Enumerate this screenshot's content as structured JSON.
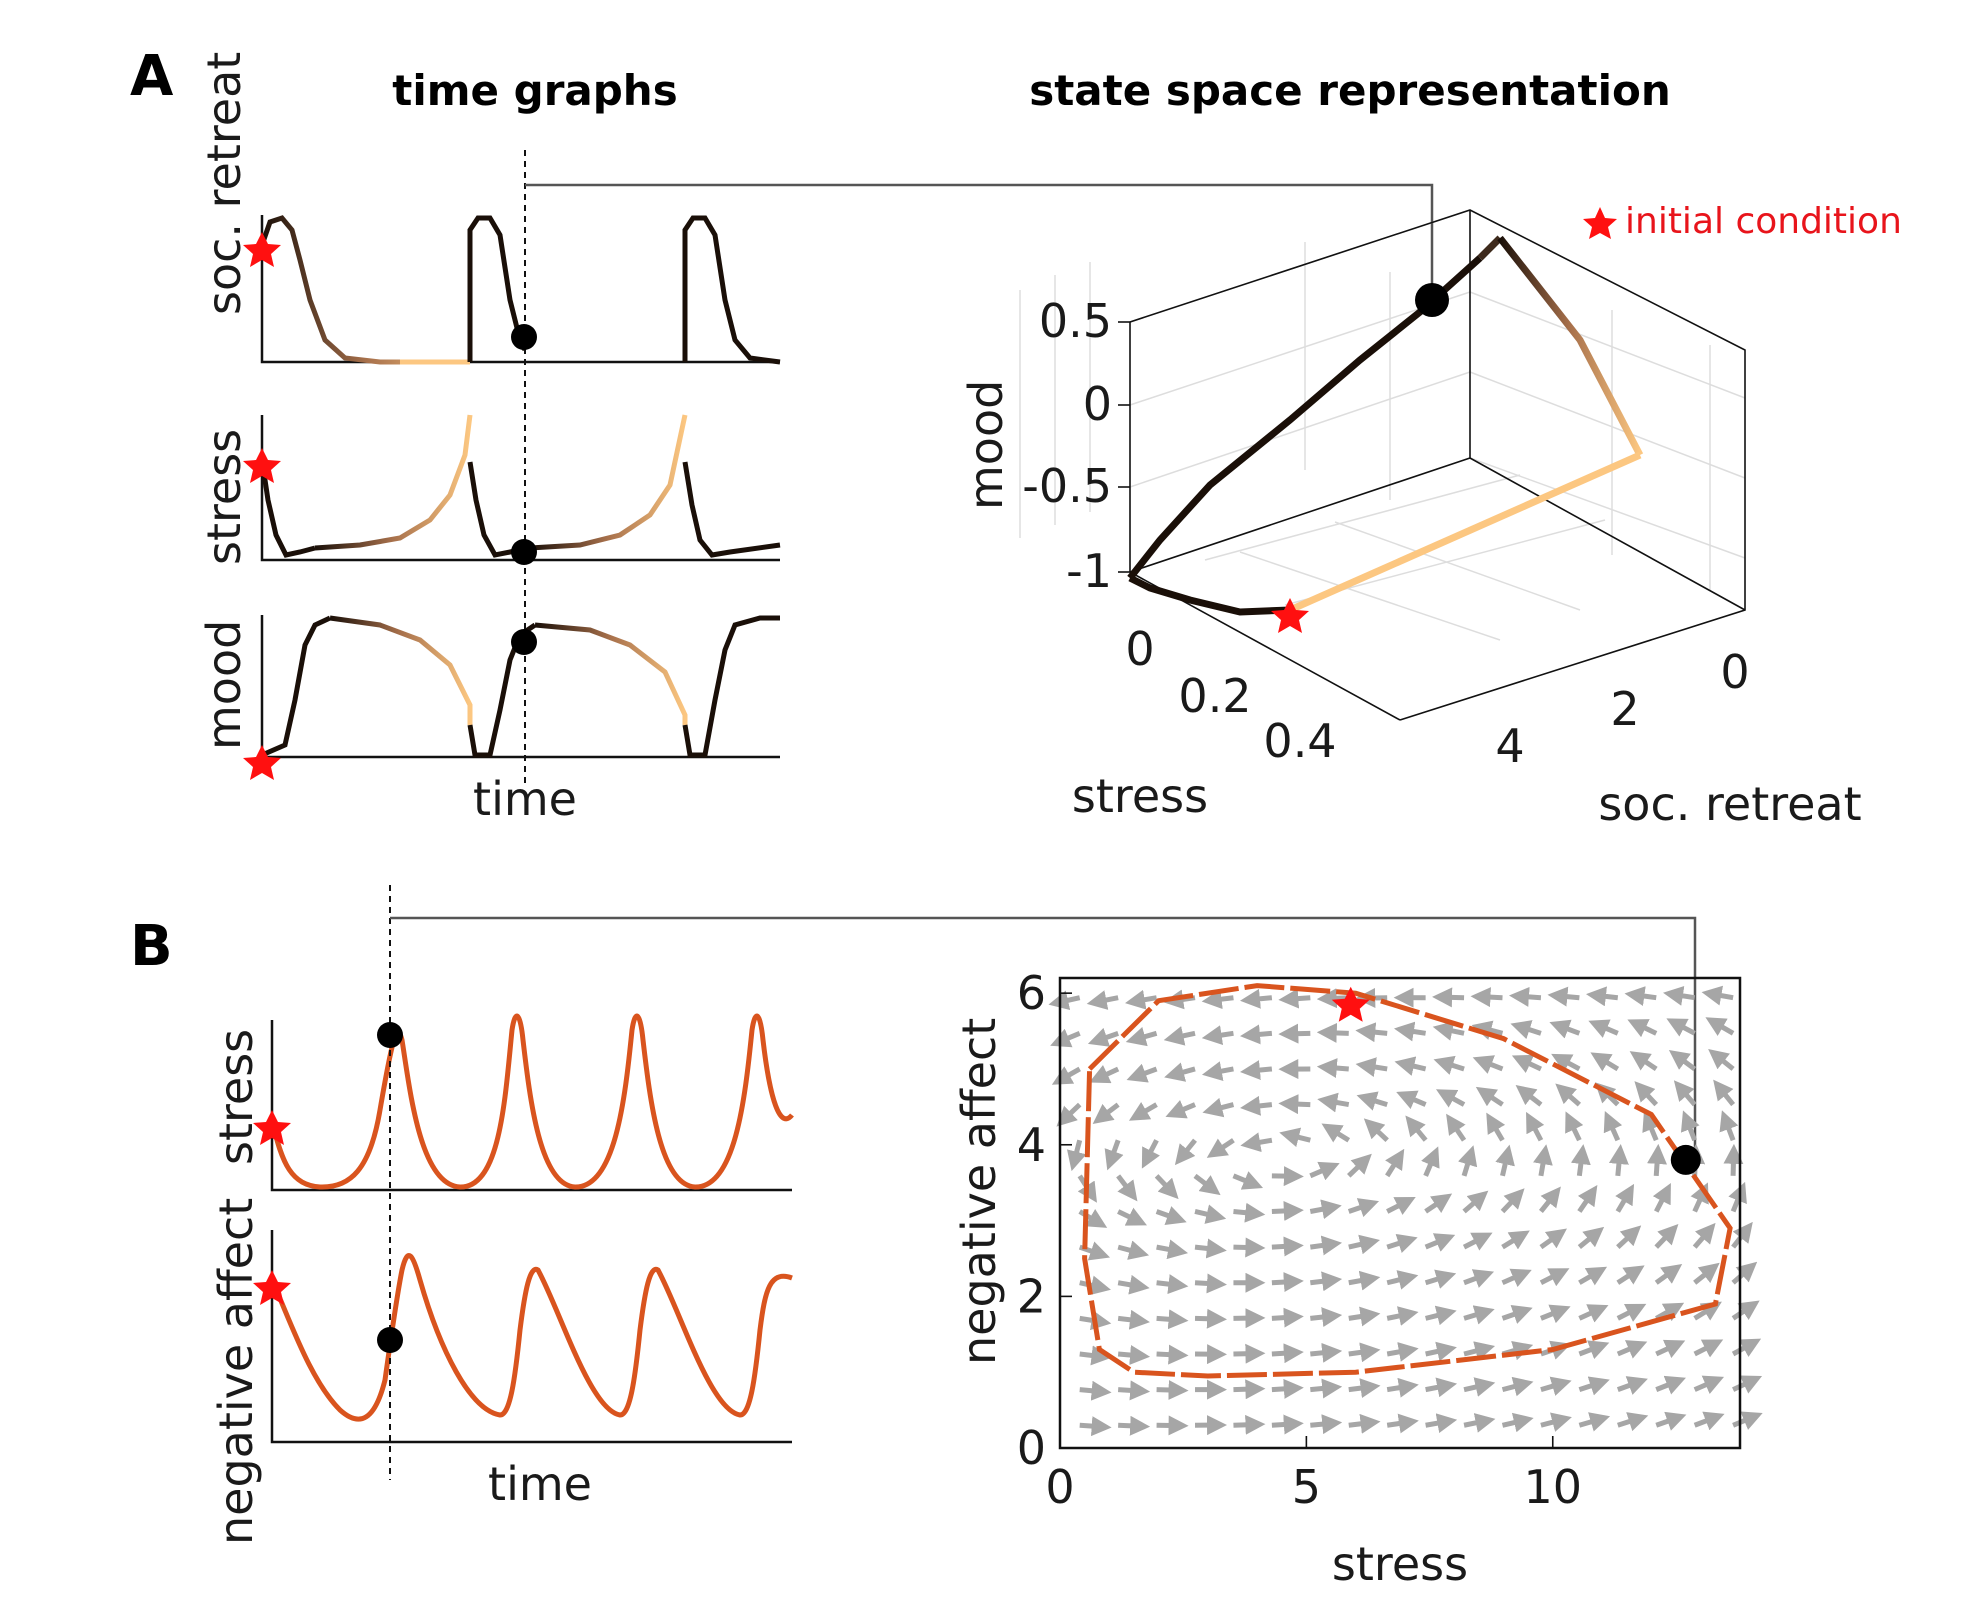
{
  "panels": {
    "a_label": "A",
    "b_label": "B",
    "a_left_header": "time graphs",
    "a_right_header": "state space representation",
    "legend_text": "initial condition"
  },
  "colors": {
    "orange": "#d9541e",
    "star": "#ff1010",
    "arrow": "#a6a6a6",
    "trajectory_dark": "#1a0f08",
    "trajectory_light": "#fcc781"
  },
  "chart_data": [
    {
      "id": "A-time",
      "type": "line",
      "xlabel": "time",
      "series": [
        {
          "name": "",
          "ylabel": "soc. retreat",
          "y": [
            4,
            5,
            5,
            2,
            0.5,
            0.1,
            0,
            0,
            0,
            0,
            0,
            5,
            5,
            2,
            0.5,
            0.1,
            0,
            0,
            0,
            0,
            0,
            5,
            5,
            2,
            0.1,
            0
          ]
        },
        {
          "name": "",
          "ylabel": "stress",
          "y": [
            0.45,
            0.2,
            0.05,
            0.03,
            0.06,
            0.08,
            0.1,
            0.12,
            0.16,
            0.22,
            0.32,
            0.5,
            0.2,
            0.05,
            0.03,
            0.06,
            0.08,
            0.1,
            0.12,
            0.16,
            0.22,
            0.32,
            0.5,
            0.2,
            0.05,
            0.09
          ]
        },
        {
          "name": "",
          "ylabel": "mood",
          "y": [
            -1,
            -0.95,
            -0.2,
            0.5,
            0.5,
            0.45,
            0.4,
            0.3,
            0.2,
            0.05,
            -0.2,
            -0.8,
            -0.3,
            0.35,
            0.5,
            0.45,
            0.4,
            0.3,
            0.2,
            0.05,
            -0.2,
            -0.85,
            -0.3,
            0.5,
            0.5,
            0.5
          ]
        }
      ]
    },
    {
      "id": "A-state",
      "type": "line",
      "xlabel": "stress",
      "ylabel": "mood",
      "zlabel": "soc. retreat",
      "x_ticks": [
        "0",
        "0.2",
        "0.4"
      ],
      "y_ticks": [
        "0.5",
        "0",
        "-0.5",
        "-1"
      ],
      "z_ticks": [
        "4",
        "2",
        "0"
      ]
    },
    {
      "id": "B-time",
      "type": "line",
      "xlabel": "time",
      "series": [
        {
          "name": "",
          "ylabel": "stress",
          "y": [
            6,
            1,
            0.5,
            1,
            4,
            13.5,
            2,
            0.6,
            0.8,
            3,
            13,
            2,
            0.6,
            0.8,
            3,
            13,
            2,
            0.6,
            0.8,
            3,
            13,
            7
          ]
        },
        {
          "name": "",
          "ylabel": "negative affect",
          "y": [
            5.5,
            3.5,
            1.5,
            0.7,
            1.5,
            5.5,
            4,
            2.5,
            1.2,
            0.8,
            5.6,
            4,
            2.5,
            1.2,
            0.8,
            5.6,
            4,
            2.5,
            1.2,
            0.8,
            5.6,
            4.5
          ]
        }
      ]
    },
    {
      "id": "B-phase",
      "type": "scatter",
      "xlabel": "stress",
      "ylabel": "negative affect",
      "xlim": [
        0,
        13.8
      ],
      "ylim": [
        0,
        6.2
      ],
      "x_ticks": [
        "0",
        "5",
        "10"
      ],
      "y_ticks": [
        "0",
        "2",
        "4",
        "6"
      ],
      "limit_cycle": {
        "x": [
          0.6,
          2,
          4,
          6,
          9,
          12,
          13.6,
          13.3,
          10,
          6,
          3,
          1.5,
          0.8,
          0.5,
          0.6
        ],
        "y": [
          5,
          5.9,
          6.1,
          6,
          5.4,
          4.4,
          2.9,
          1.9,
          1.3,
          1.0,
          0.95,
          1.0,
          1.3,
          2.5,
          5
        ]
      },
      "initial_condition": {
        "x": 5.9,
        "y": 5.9
      },
      "marker": {
        "x": 12.7,
        "y": 3.8
      }
    }
  ]
}
